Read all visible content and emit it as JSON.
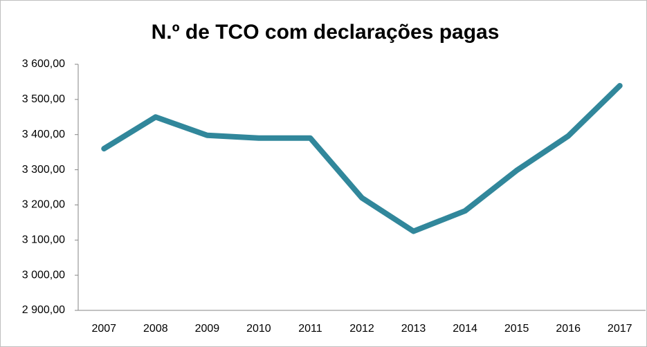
{
  "chart_data": {
    "type": "line",
    "title": "N.º de TCO com declarações pagas",
    "categories": [
      "2007",
      "2008",
      "2009",
      "2010",
      "2011",
      "2012",
      "2013",
      "2014",
      "2015",
      "2016",
      "2017"
    ],
    "series": [
      {
        "name": "N.º de TCO com declarações pagas",
        "color": "#31879b",
        "values": [
          3360,
          3450,
          3398,
          3390,
          3390,
          3220,
          3125,
          3183,
          3298,
          3396,
          3539
        ]
      }
    ],
    "ylim": [
      2900,
      3600
    ],
    "yticks": [
      {
        "value": 2900,
        "label": "2 900,00"
      },
      {
        "value": 3000,
        "label": "3 000,00"
      },
      {
        "value": 3100,
        "label": "3 100,00"
      },
      {
        "value": 3200,
        "label": "3 200,00"
      },
      {
        "value": 3300,
        "label": "3 300,00"
      },
      {
        "value": 3400,
        "label": "3 400,00"
      },
      {
        "value": 3500,
        "label": "3 500,00"
      },
      {
        "value": 3600,
        "label": "3 600,00"
      }
    ],
    "grid": false
  }
}
